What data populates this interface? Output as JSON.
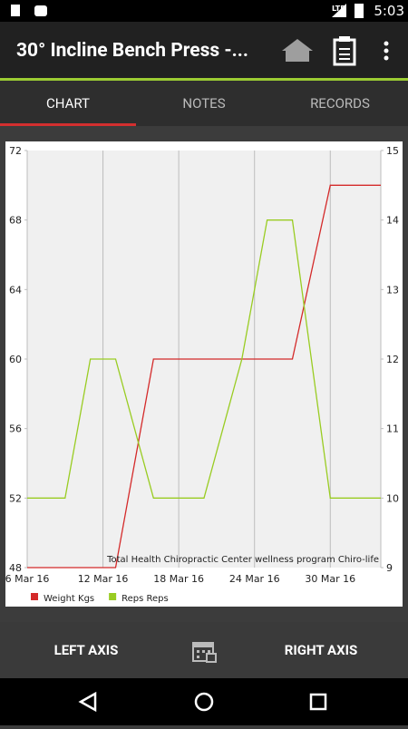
{
  "status_bar": {
    "network": "LTE",
    "time": "5:03"
  },
  "app_bar": {
    "title": "30° Incline Bench Press -..."
  },
  "tabs": [
    "CHART",
    "NOTES",
    "RECORDS"
  ],
  "chart_data": {
    "type": "line",
    "x": [
      "2016-03-06",
      "2016-03-09",
      "2016-03-11",
      "2016-03-13",
      "2016-03-16",
      "2016-03-20",
      "2016-03-23",
      "2016-03-25",
      "2016-03-27",
      "2016-03-30",
      "2016-04-03"
    ],
    "series": [
      {
        "name": "Weight Kgs",
        "color": "#d42a2a",
        "values": [
          48,
          48,
          48,
          48,
          60,
          60,
          60,
          60,
          60,
          70,
          70
        ]
      },
      {
        "name": "Reps Reps",
        "color": "#99cc22",
        "axis": "y2",
        "values": [
          10,
          10,
          12,
          12,
          10,
          10,
          12,
          14,
          14,
          10,
          10
        ]
      }
    ],
    "xlim": [
      "2016-03-06",
      "2016-04-03"
    ],
    "xticks": [
      {
        "value": "2016-03-06",
        "label": "6 Mar 16"
      },
      {
        "value": "2016-03-12",
        "label": "12 Mar 16"
      },
      {
        "value": "2016-03-18",
        "label": "18 Mar 16"
      },
      {
        "value": "2016-03-24",
        "label": "24 Mar 16"
      },
      {
        "value": "2016-03-30",
        "label": "30 Mar 16"
      }
    ],
    "ylim": [
      48,
      72
    ],
    "yticks": [
      48,
      52,
      56,
      60,
      64,
      68,
      72
    ],
    "y2lim": [
      9,
      15
    ],
    "y2ticks": [
      9,
      10,
      11,
      12,
      13,
      14,
      15
    ],
    "annotation": "Total Health Chiropractic Center wellness program Chiro-life",
    "grid": true
  },
  "bottom_bar": {
    "buttons": [
      "LEFT AXIS",
      "RIGHT AXIS"
    ]
  }
}
